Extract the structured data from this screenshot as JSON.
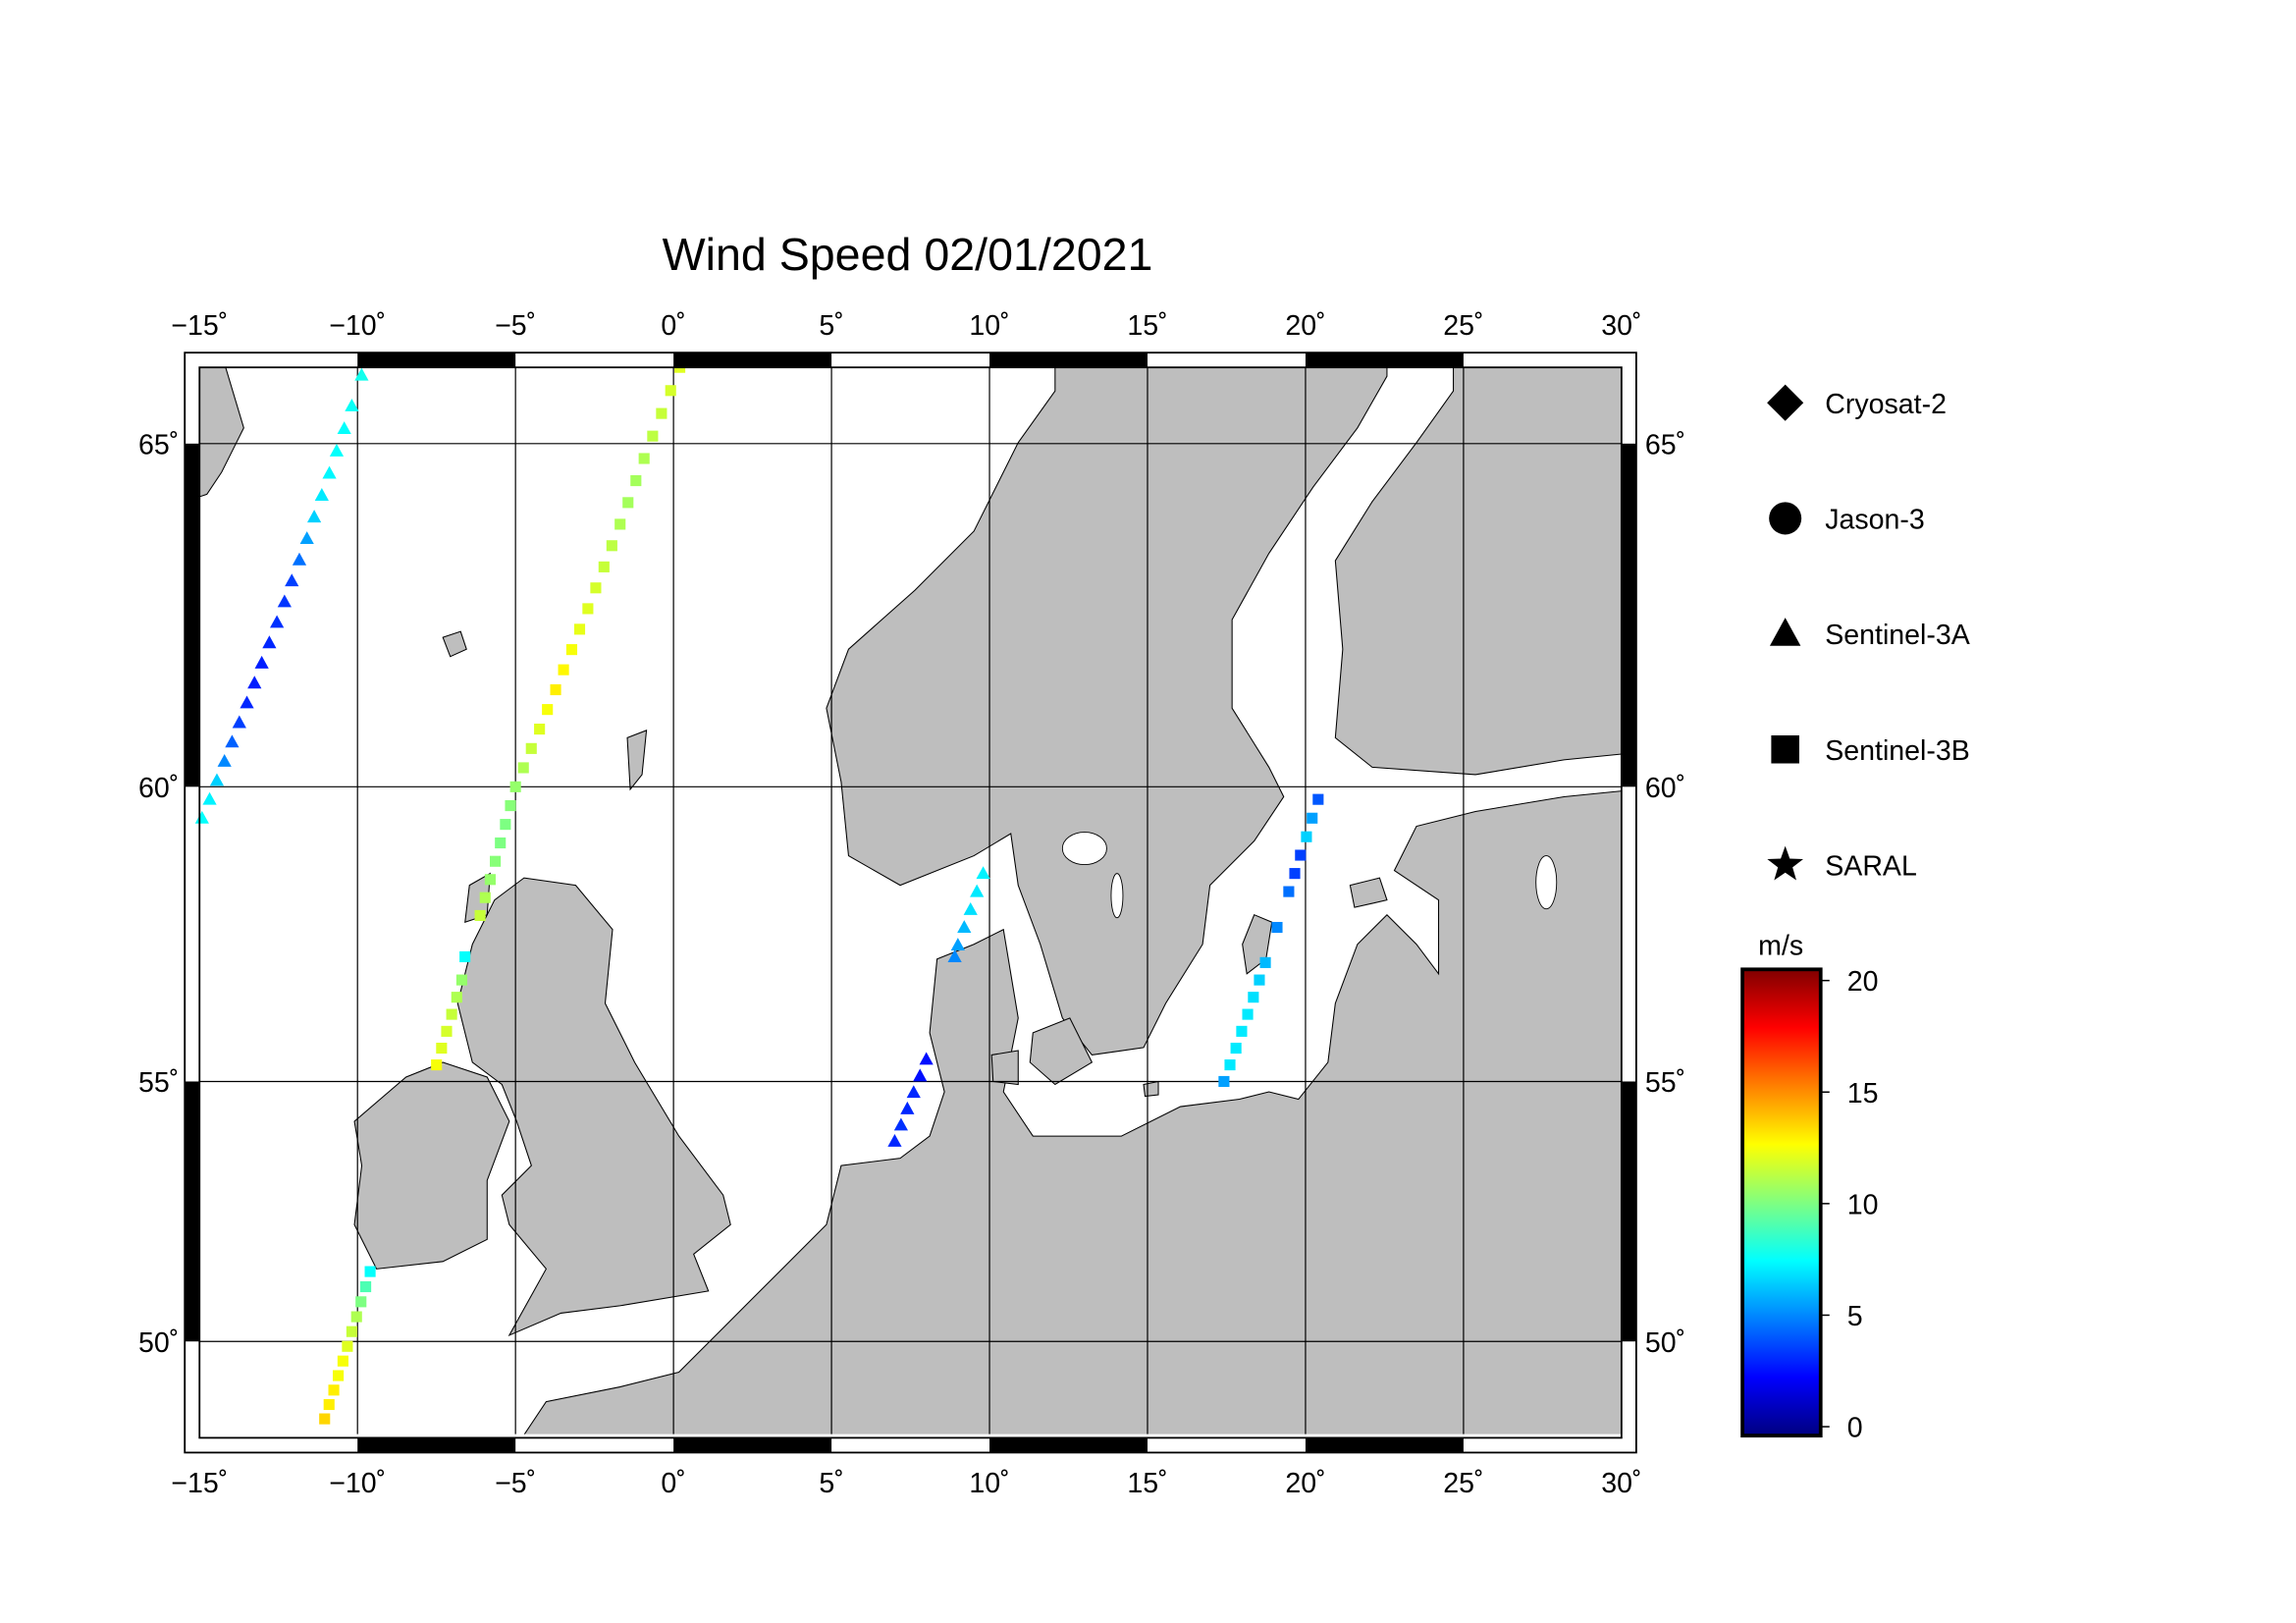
{
  "chart_data": {
    "type": "scatter",
    "title": "Wind Speed 02/01/2021",
    "projection": "mercator",
    "xlim": [
      -15,
      30
    ],
    "ylim": [
      48,
      66
    ],
    "xticks": [
      {
        "value": -15,
        "label": "−15˚"
      },
      {
        "value": -10,
        "label": "−10˚"
      },
      {
        "value": -5,
        "label": "−5˚"
      },
      {
        "value": 0,
        "label": "0˚"
      },
      {
        "value": 5,
        "label": "5˚"
      },
      {
        "value": 10,
        "label": "10˚"
      },
      {
        "value": 15,
        "label": "15˚"
      },
      {
        "value": 20,
        "label": "20˚"
      },
      {
        "value": 25,
        "label": "25˚"
      },
      {
        "value": 30,
        "label": "30˚"
      }
    ],
    "yticks": [
      {
        "value": 50,
        "label": "50˚"
      },
      {
        "value": 55,
        "label": "55˚"
      },
      {
        "value": 60,
        "label": "60˚"
      },
      {
        "value": 65,
        "label": "65˚"
      }
    ],
    "grid": true,
    "colormap": "jet",
    "colorbar_label": "m/s",
    "clim": [
      -0.4,
      20.5
    ],
    "cticks": [
      0,
      5,
      10,
      15,
      20
    ],
    "series": [
      {
        "name": "Cryosat-2",
        "marker": "diamond",
        "x": [],
        "y": [],
        "values": []
      },
      {
        "name": "Jason-3",
        "marker": "circle",
        "x": [],
        "y": [],
        "values": []
      },
      {
        "name": "Sentinel-3A",
        "marker": "triangle",
        "x": [
          -14.92,
          -14.68,
          -14.45,
          -14.21,
          -13.97,
          -13.74,
          -13.5,
          -13.26,
          -13.03,
          -12.79,
          -12.55,
          -12.31,
          -12.08,
          -11.84,
          -11.6,
          -11.37,
          -11.13,
          -10.89,
          -10.66,
          -10.42,
          -10.18,
          -9.87,
          9.8,
          9.6,
          9.4,
          9.2,
          9.0,
          8.9,
          8.0,
          7.8,
          7.6,
          7.4,
          7.2,
          7.0
        ],
        "y": [
          59.5,
          59.8,
          60.1,
          60.4,
          60.7,
          61.0,
          61.3,
          61.6,
          61.9,
          62.2,
          62.5,
          62.8,
          63.1,
          63.4,
          63.7,
          64.0,
          64.3,
          64.6,
          64.9,
          65.2,
          65.5,
          65.9,
          58.6,
          58.3,
          58.0,
          57.7,
          57.4,
          57.2,
          55.4,
          55.1,
          54.8,
          54.5,
          54.2,
          53.9
        ],
        "values": [
          7.5,
          7.2,
          6.5,
          5.0,
          4.2,
          3.5,
          3.0,
          2.8,
          2.8,
          3.0,
          3.2,
          3.3,
          3.5,
          4.5,
          5.5,
          6.5,
          7.0,
          7.3,
          7.5,
          7.5,
          7.6,
          7.8,
          7.2,
          7.0,
          6.8,
          6.0,
          5.5,
          5.0,
          2.5,
          2.5,
          3.0,
          3.0,
          3.2,
          3.0
        ]
      },
      {
        "name": "Sentinel-3B",
        "marker": "square",
        "x": [
          0.2,
          -0.09,
          -0.38,
          -0.66,
          -0.93,
          -1.19,
          -1.44,
          -1.69,
          -1.95,
          -2.2,
          -2.46,
          -2.71,
          -2.97,
          -3.22,
          -3.48,
          -3.73,
          -3.99,
          -4.24,
          -4.5,
          -4.75,
          -5.0,
          -5.16,
          -5.32,
          -5.48,
          -5.64,
          -5.8,
          -5.96,
          -6.12,
          -6.6,
          -6.7,
          -6.86,
          -7.02,
          -7.18,
          -7.34,
          -7.5,
          -9.6,
          -9.74,
          -9.89,
          -10.03,
          -10.18,
          -10.32,
          -10.46,
          -10.61,
          -10.75,
          -10.9,
          -11.04,
          20.4,
          20.21,
          20.03,
          19.84,
          19.66,
          19.47,
          19.1,
          18.73,
          18.54,
          18.35,
          18.17,
          17.98,
          17.8,
          17.61,
          17.42
        ],
        "y": [
          66.0,
          65.7,
          65.4,
          65.1,
          64.8,
          64.5,
          64.2,
          63.9,
          63.6,
          63.3,
          63.0,
          62.7,
          62.4,
          62.1,
          61.8,
          61.5,
          61.2,
          60.9,
          60.6,
          60.3,
          60.0,
          59.7,
          59.4,
          59.1,
          58.8,
          58.5,
          58.2,
          57.9,
          57.2,
          56.8,
          56.5,
          56.2,
          55.9,
          55.6,
          55.3,
          51.4,
          51.1,
          50.8,
          50.5,
          50.2,
          49.9,
          49.6,
          49.3,
          49.0,
          48.7,
          48.4,
          59.8,
          59.5,
          59.2,
          58.9,
          58.6,
          58.3,
          57.7,
          57.1,
          56.8,
          56.5,
          56.2,
          55.9,
          55.6,
          55.3,
          55.0
        ],
        "values": [
          12.0,
          11.8,
          11.5,
          11.3,
          11.0,
          10.8,
          10.8,
          11.0,
          11.3,
          11.5,
          11.8,
          12.0,
          12.2,
          12.5,
          12.8,
          13.0,
          12.5,
          12.0,
          11.5,
          11.0,
          10.5,
          10.2,
          10.0,
          10.0,
          10.2,
          10.5,
          11.0,
          11.5,
          7.5,
          10.5,
          11.0,
          11.5,
          11.8,
          12.0,
          12.5,
          7.5,
          9.0,
          10.0,
          11.0,
          11.5,
          12.0,
          12.5,
          12.5,
          13.0,
          13.0,
          13.5,
          4.0,
          5.5,
          6.5,
          3.5,
          3.5,
          4.5,
          5.0,
          6.0,
          6.5,
          6.8,
          7.0,
          7.0,
          7.0,
          7.0,
          5.5
        ]
      },
      {
        "name": "SARAL",
        "marker": "star",
        "x": [],
        "y": [],
        "values": []
      }
    ]
  }
}
